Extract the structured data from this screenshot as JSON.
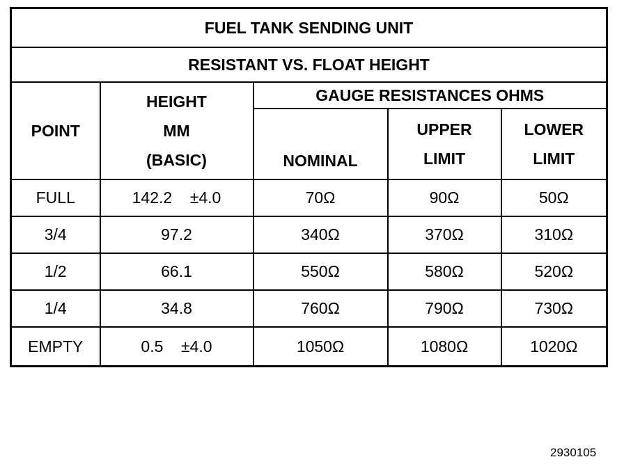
{
  "title": "FUEL TANK SENDING UNIT",
  "subtitle": "RESISTANT VS. FLOAT HEIGHT",
  "headers": {
    "point": "POINT",
    "height": [
      "HEIGHT",
      "MM",
      "(BASIC)"
    ],
    "gauge": "GAUGE RESISTANCES OHMS",
    "nominal": "NOMINAL",
    "upper": [
      "UPPER",
      "LIMIT"
    ],
    "lower": [
      "LOWER",
      "LIMIT"
    ]
  },
  "rows": [
    {
      "point": "FULL",
      "height": "142.2    ±4.0",
      "nominal": "70Ω",
      "upper": "90Ω",
      "lower": "50Ω"
    },
    {
      "point": "3/4",
      "height": "97.2",
      "nominal": "340Ω",
      "upper": "370Ω",
      "lower": "310Ω"
    },
    {
      "point": "1/2",
      "height": "66.1",
      "nominal": "550Ω",
      "upper": "580Ω",
      "lower": "520Ω"
    },
    {
      "point": "1/4",
      "height": "34.8",
      "nominal": "760Ω",
      "upper": "790Ω",
      "lower": "730Ω"
    },
    {
      "point": "EMPTY",
      "height": "0.5    ±4.0",
      "nominal": "1050Ω",
      "upper": "1080Ω",
      "lower": "1020Ω"
    }
  ],
  "figure_number": "2930105"
}
